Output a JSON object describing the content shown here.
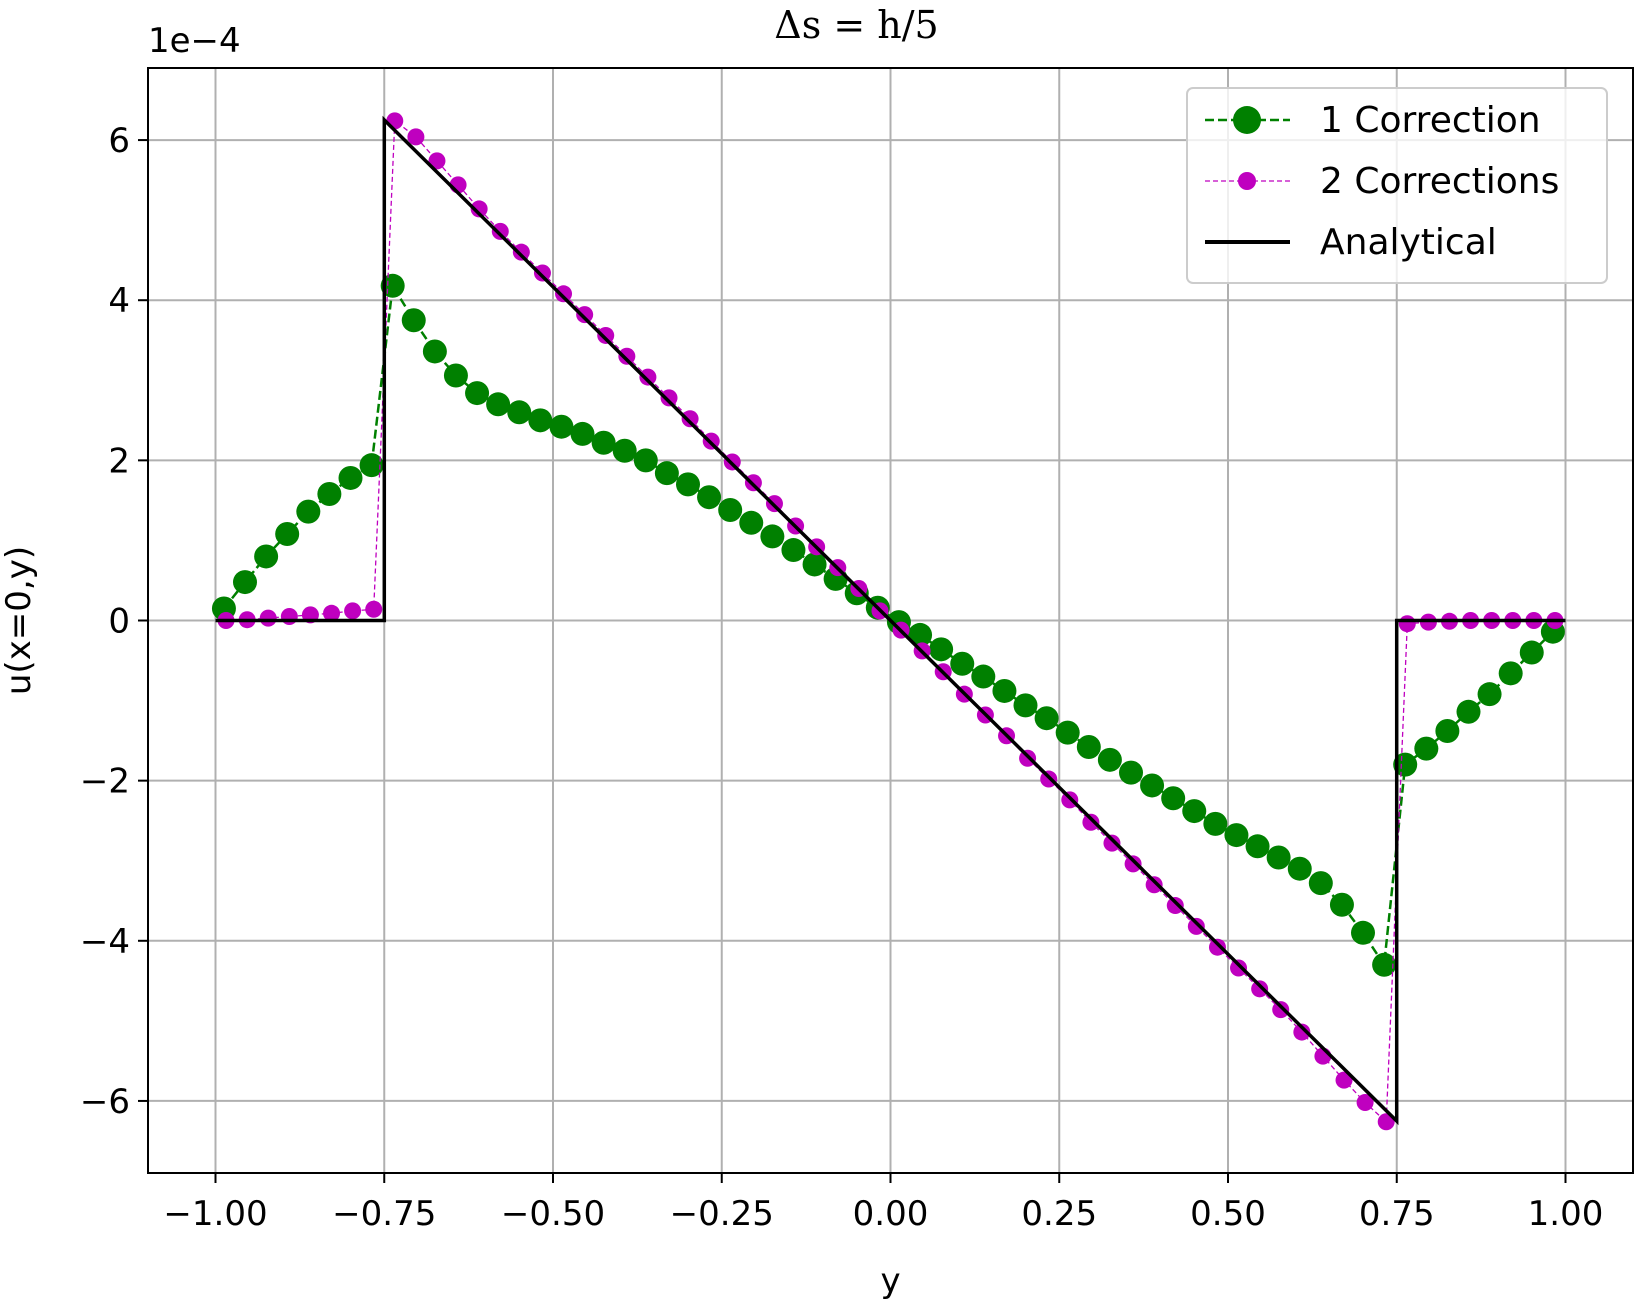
{
  "chart_data": {
    "type": "line",
    "title": "Δs = h/5",
    "xlabel": "y",
    "ylabel": "u(x=0,y)",
    "y_offset_label": "1e−4",
    "xlim": [
      -1.1,
      1.1
    ],
    "ylim": [
      -6.9,
      6.9
    ],
    "x_ticks": [
      -1.0,
      -0.75,
      -0.5,
      -0.25,
      0.0,
      0.25,
      0.5,
      0.75,
      1.0
    ],
    "x_tick_labels": [
      "−1.00",
      "−0.75",
      "−0.50",
      "−0.25",
      "0.00",
      "0.25",
      "0.50",
      "0.75",
      "1.00"
    ],
    "y_ticks": [
      -6,
      -4,
      -2,
      0,
      2,
      4,
      6
    ],
    "y_tick_labels": [
      "−6",
      "−4",
      "−2",
      "0",
      "2",
      "4",
      "6"
    ],
    "grid": true,
    "legend_position": "top-right",
    "series": [
      {
        "name": "1 Correction",
        "color": "#008000",
        "line_style": "dashed",
        "marker": "large-circle",
        "x": [
          -0.9875,
          -0.9563,
          -0.925,
          -0.8938,
          -0.8625,
          -0.8313,
          -0.8,
          -0.7688,
          -0.7375,
          -0.7063,
          -0.675,
          -0.6438,
          -0.6125,
          -0.5813,
          -0.55,
          -0.5188,
          -0.4875,
          -0.4563,
          -0.425,
          -0.3938,
          -0.3625,
          -0.3313,
          -0.3,
          -0.2688,
          -0.2375,
          -0.2063,
          -0.175,
          -0.1438,
          -0.1125,
          -0.0813,
          -0.05,
          -0.0188,
          0.0125,
          0.0438,
          0.075,
          0.1063,
          0.1375,
          0.1688,
          0.2,
          0.2313,
          0.2625,
          0.2938,
          0.325,
          0.3563,
          0.3875,
          0.4188,
          0.45,
          0.4813,
          0.5125,
          0.5438,
          0.575,
          0.6063,
          0.6375,
          0.6688,
          0.7,
          0.7313,
          0.7625,
          0.7938,
          0.825,
          0.8563,
          0.8875,
          0.9188,
          0.95,
          0.9813
        ],
        "y": [
          0.15,
          0.48,
          0.8,
          1.08,
          1.36,
          1.58,
          1.78,
          1.94,
          4.18,
          3.75,
          3.36,
          3.06,
          2.84,
          2.7,
          2.6,
          2.5,
          2.42,
          2.33,
          2.22,
          2.12,
          2.0,
          1.84,
          1.7,
          1.54,
          1.38,
          1.22,
          1.05,
          0.88,
          0.7,
          0.52,
          0.34,
          0.16,
          -0.02,
          -0.18,
          -0.36,
          -0.54,
          -0.7,
          -0.88,
          -1.06,
          -1.22,
          -1.4,
          -1.58,
          -1.74,
          -1.9,
          -2.06,
          -2.22,
          -2.38,
          -2.54,
          -2.68,
          -2.82,
          -2.96,
          -3.1,
          -3.28,
          -3.55,
          -3.9,
          -4.3,
          -1.8,
          -1.6,
          -1.38,
          -1.14,
          -0.92,
          -0.66,
          -0.4,
          -0.14
        ]
      },
      {
        "name": "2 Corrections",
        "color": "#bf00bf",
        "line_style": "dashed",
        "marker": "small-circle",
        "x": [
          -0.9844,
          -0.9531,
          -0.9219,
          -0.8906,
          -0.8594,
          -0.8281,
          -0.7969,
          -0.7656,
          -0.7344,
          -0.7031,
          -0.6719,
          -0.6406,
          -0.6094,
          -0.5781,
          -0.5469,
          -0.5156,
          -0.4844,
          -0.4531,
          -0.4219,
          -0.3906,
          -0.3594,
          -0.3281,
          -0.2969,
          -0.2656,
          -0.2344,
          -0.2031,
          -0.1719,
          -0.1406,
          -0.1094,
          -0.0781,
          -0.0469,
          -0.0156,
          0.0156,
          0.0469,
          0.0781,
          0.1094,
          0.1406,
          0.1719,
          0.2031,
          0.2344,
          0.2656,
          0.2969,
          0.3281,
          0.3594,
          0.3906,
          0.4219,
          0.4531,
          0.4844,
          0.5156,
          0.5469,
          0.5781,
          0.6094,
          0.6406,
          0.6719,
          0.7031,
          0.7344,
          0.7656,
          0.7969,
          0.8281,
          0.8594,
          0.8906,
          0.9219,
          0.9531,
          0.9844
        ],
        "y": [
          0.0,
          0.01,
          0.03,
          0.05,
          0.07,
          0.09,
          0.12,
          0.14,
          6.24,
          6.04,
          5.74,
          5.44,
          5.14,
          4.86,
          4.6,
          4.34,
          4.08,
          3.82,
          3.56,
          3.3,
          3.04,
          2.78,
          2.52,
          2.24,
          1.98,
          1.72,
          1.46,
          1.18,
          0.92,
          0.66,
          0.4,
          0.12,
          -0.12,
          -0.38,
          -0.64,
          -0.92,
          -1.18,
          -1.44,
          -1.72,
          -1.98,
          -2.24,
          -2.52,
          -2.78,
          -3.04,
          -3.3,
          -3.56,
          -3.82,
          -4.08,
          -4.34,
          -4.6,
          -4.86,
          -5.14,
          -5.44,
          -5.74,
          -6.02,
          -6.26,
          -0.04,
          -0.02,
          -0.01,
          0.0,
          0.0,
          0.0,
          0.0,
          0.0
        ]
      },
      {
        "name": "Analytical",
        "color": "#000000",
        "line_style": "solid",
        "marker": "none",
        "x": [
          -1.0,
          -0.75,
          -0.75,
          0.75,
          0.75,
          1.0
        ],
        "y": [
          0.0,
          0.0,
          6.25,
          -6.25,
          0.0,
          0.0
        ]
      }
    ]
  }
}
